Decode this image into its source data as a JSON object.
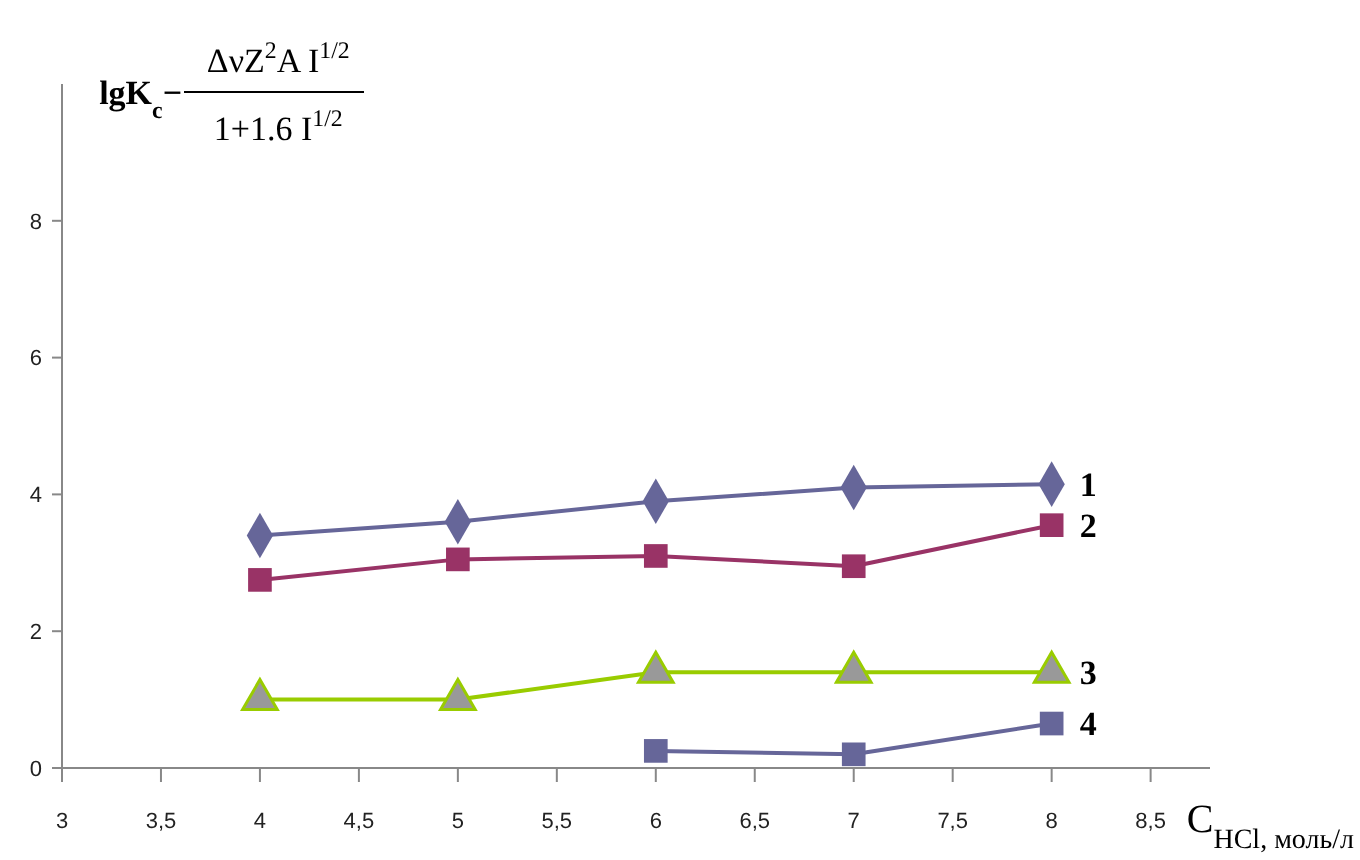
{
  "chart_data": {
    "type": "line",
    "xlabel": "C$_{HCl, моль/л}$",
    "ylabel": "lgK$_{c}$− ΔνZ$^{2}$A I$^{1/2}$\n1+1.6 I$^{1/2}$",
    "x": [
      4,
      5,
      6,
      7,
      8
    ],
    "series": [
      {
        "name": "1",
        "color": "#666699",
        "marker": "diamond",
        "values": [
          3.4,
          3.6,
          3.9,
          4.1,
          4.15
        ]
      },
      {
        "name": "2",
        "color": "#993366",
        "marker": "square",
        "values": [
          2.75,
          3.05,
          3.1,
          2.95,
          3.55
        ]
      },
      {
        "name": "3",
        "color": "#99cc00",
        "marker": "triangle",
        "values": [
          1.0,
          1.0,
          1.4,
          1.4,
          1.4
        ]
      },
      {
        "name": "4",
        "color": "#666699",
        "marker": "square",
        "values": [
          null,
          null,
          0.25,
          0.2,
          0.65
        ]
      }
    ],
    "xlim": [
      3,
      8.8
    ],
    "ylim": [
      0,
      10
    ],
    "xticks": [
      3,
      {
        "value": 3.5,
        "label": "3,5"
      },
      4,
      {
        "value": 4.5,
        "label": "4,5"
      },
      5,
      {
        "value": 5.5,
        "label": "5,5"
      },
      6,
      {
        "value": 6.5,
        "label": "6,5"
      },
      7,
      {
        "value": 7.5,
        "label": "7,5"
      },
      8,
      {
        "value": 8.5,
        "label": "8,5"
      }
    ],
    "yticks": [
      0,
      2,
      4,
      6,
      8
    ]
  }
}
